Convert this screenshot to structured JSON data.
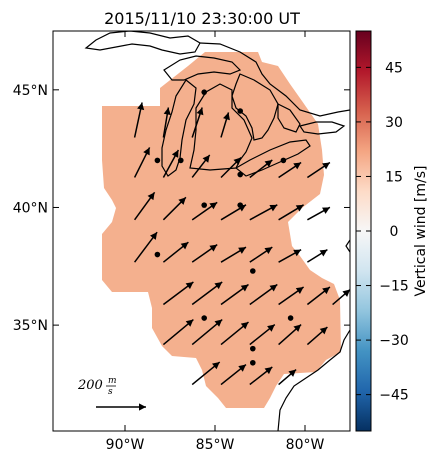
{
  "chart_data": {
    "type": "map-vector",
    "title": "2015/11/10 23:30:00 UT",
    "map": {
      "lon_range": [
        -94.0,
        -77.5
      ],
      "lat_range": [
        30.5,
        47.5
      ],
      "x_ticks": [
        {
          "value": -90,
          "label": "90°W"
        },
        {
          "value": -85,
          "label": "85°W"
        },
        {
          "value": -80,
          "label": "80°W"
        }
      ],
      "y_ticks": [
        {
          "value": 45,
          "label": "45°N"
        },
        {
          "value": 40,
          "label": "40°N"
        },
        {
          "value": 35,
          "label": "35°N"
        }
      ],
      "fill_color": "#f4b08e"
    },
    "colorbar": {
      "label": "Vertical wind [m/s]",
      "range": [
        -55,
        55
      ],
      "ticks": [
        {
          "value": 45,
          "label": "45"
        },
        {
          "value": 30,
          "label": "30"
        },
        {
          "value": 15,
          "label": "15"
        },
        {
          "value": 0,
          "label": "0"
        },
        {
          "value": -15,
          "label": "−15"
        },
        {
          "value": -30,
          "label": "−30"
        },
        {
          "value": -45,
          "label": "−45"
        }
      ],
      "colors": [
        "#053061",
        "#2166ac",
        "#4393c3",
        "#92c5de",
        "#d1e5f0",
        "#f7f7f7",
        "#fddbc7",
        "#f4a582",
        "#d6604d",
        "#b2182b",
        "#67001f"
      ]
    },
    "scale_arrow": {
      "label": "200",
      "unit_num": "m",
      "unit_den": "s",
      "speed": 200
    },
    "stations": [
      {
        "lon": -88.2,
        "lat": 42.0
      },
      {
        "lon": -86.9,
        "lat": 42.0
      },
      {
        "lon": -81.2,
        "lat": 42.0
      },
      {
        "lon": -83.6,
        "lat": 44.1
      },
      {
        "lon": -85.6,
        "lat": 44.9
      },
      {
        "lon": -83.6,
        "lat": 41.4
      },
      {
        "lon": -85.6,
        "lat": 40.1
      },
      {
        "lon": -83.6,
        "lat": 40.1
      },
      {
        "lon": -88.2,
        "lat": 38.0
      },
      {
        "lon": -82.9,
        "lat": 37.3
      },
      {
        "lon": -85.6,
        "lat": 35.3
      },
      {
        "lon": -80.8,
        "lat": 35.3
      },
      {
        "lon": -82.9,
        "lat": 34.0
      },
      {
        "lon": -82.9,
        "lat": 33.4
      }
    ],
    "wind_vectors": [
      {
        "lon": -88.8,
        "lat": 43.4,
        "u": 30,
        "v": 140
      },
      {
        "lon": -87.2,
        "lat": 43.4,
        "u": 20,
        "v": 120
      },
      {
        "lon": -85.6,
        "lat": 43.4,
        "u": 40,
        "v": 120
      },
      {
        "lon": -84.0,
        "lat": 43.4,
        "u": 30,
        "v": 100
      },
      {
        "lon": -88.8,
        "lat": 41.7,
        "u": 60,
        "v": 120
      },
      {
        "lon": -87.2,
        "lat": 41.7,
        "u": 60,
        "v": 110
      },
      {
        "lon": -85.6,
        "lat": 41.7,
        "u": 70,
        "v": 90
      },
      {
        "lon": -84.0,
        "lat": 41.7,
        "u": 80,
        "v": 80
      },
      {
        "lon": -82.4,
        "lat": 41.7,
        "u": 90,
        "v": 70
      },
      {
        "lon": -80.8,
        "lat": 41.7,
        "u": 90,
        "v": 60
      },
      {
        "lon": -79.2,
        "lat": 41.7,
        "u": 90,
        "v": 60
      },
      {
        "lon": -88.8,
        "lat": 39.9,
        "u": 80,
        "v": 110
      },
      {
        "lon": -87.2,
        "lat": 39.9,
        "u": 90,
        "v": 90
      },
      {
        "lon": -85.6,
        "lat": 39.9,
        "u": 100,
        "v": 70
      },
      {
        "lon": -84.0,
        "lat": 39.9,
        "u": 100,
        "v": 60
      },
      {
        "lon": -82.4,
        "lat": 39.9,
        "u": 110,
        "v": 60
      },
      {
        "lon": -80.8,
        "lat": 39.9,
        "u": 100,
        "v": 60
      },
      {
        "lon": -79.2,
        "lat": 39.9,
        "u": 90,
        "v": 50
      },
      {
        "lon": -88.8,
        "lat": 38.1,
        "u": 90,
        "v": 120
      },
      {
        "lon": -87.2,
        "lat": 38.1,
        "u": 100,
        "v": 80
      },
      {
        "lon": -85.6,
        "lat": 38.1,
        "u": 100,
        "v": 70
      },
      {
        "lon": -84.0,
        "lat": 38.1,
        "u": 100,
        "v": 60
      },
      {
        "lon": -82.4,
        "lat": 38.1,
        "u": 90,
        "v": 60
      },
      {
        "lon": -80.8,
        "lat": 38.1,
        "u": 90,
        "v": 50
      },
      {
        "lon": -79.2,
        "lat": 38.1,
        "u": 80,
        "v": 50
      },
      {
        "lon": -87.2,
        "lat": 36.3,
        "u": 120,
        "v": 90
      },
      {
        "lon": -85.6,
        "lat": 36.3,
        "u": 120,
        "v": 90
      },
      {
        "lon": -84.0,
        "lat": 36.3,
        "u": 110,
        "v": 80
      },
      {
        "lon": -82.4,
        "lat": 36.3,
        "u": 110,
        "v": 80
      },
      {
        "lon": -80.8,
        "lat": 36.3,
        "u": 100,
        "v": 70
      },
      {
        "lon": -79.2,
        "lat": 36.3,
        "u": 90,
        "v": 70
      },
      {
        "lon": -77.8,
        "lat": 36.3,
        "u": 70,
        "v": 60
      },
      {
        "lon": -87.2,
        "lat": 34.6,
        "u": 120,
        "v": 100
      },
      {
        "lon": -85.6,
        "lat": 34.6,
        "u": 120,
        "v": 100
      },
      {
        "lon": -84.0,
        "lat": 34.6,
        "u": 110,
        "v": 90
      },
      {
        "lon": -82.4,
        "lat": 34.6,
        "u": 100,
        "v": 80
      },
      {
        "lon": -80.8,
        "lat": 34.6,
        "u": 90,
        "v": 80
      },
      {
        "lon": -79.2,
        "lat": 34.6,
        "u": 80,
        "v": 70
      },
      {
        "lon": -85.6,
        "lat": 32.9,
        "u": 110,
        "v": 90
      },
      {
        "lon": -84.0,
        "lat": 32.9,
        "u": 100,
        "v": 80
      },
      {
        "lon": -82.4,
        "lat": 32.9,
        "u": 90,
        "v": 70
      },
      {
        "lon": -80.8,
        "lat": 32.9,
        "u": 70,
        "v": 60
      }
    ]
  }
}
